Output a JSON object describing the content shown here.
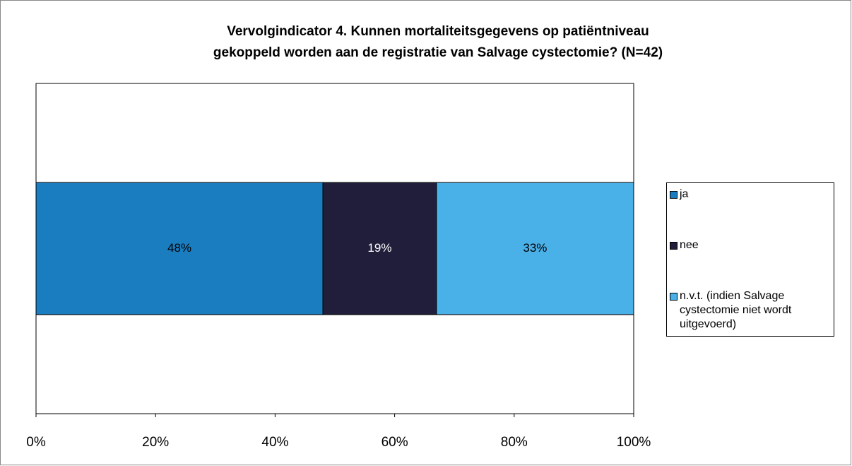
{
  "chart_data": {
    "type": "stacked-bar-horizontal",
    "title": [
      "Vervolgindicator 4. Kunnen mortaliteitsgegevens  op patiëntniveau",
      "gekoppeld worden aan de registratie  van Salvage cystectomie?  (N=42)"
    ],
    "categories": [
      null
    ],
    "series": [
      {
        "name": "ja",
        "color": "#1a7dc0",
        "values": [
          48
        ],
        "value_labels": [
          "48%"
        ]
      },
      {
        "name": "nee",
        "color": "#201e3b",
        "values": [
          19
        ],
        "value_labels": [
          "19%"
        ]
      },
      {
        "name": "n.v.t.  (indien Salvage cystectomie niet wordt uitgevoerd)",
        "color": "#4ab0e8",
        "values": [
          33
        ],
        "value_labels": [
          "33%"
        ]
      }
    ],
    "xlim": [
      0,
      100
    ],
    "xticks": [
      {
        "value": 0,
        "label": "0%"
      },
      {
        "value": 20,
        "label": "20%"
      },
      {
        "value": 40,
        "label": "40%"
      },
      {
        "value": 60,
        "label": "60%"
      },
      {
        "value": 80,
        "label": "80%"
      },
      {
        "value": 100,
        "label": "100%"
      }
    ],
    "grid": false,
    "legend": "right"
  }
}
